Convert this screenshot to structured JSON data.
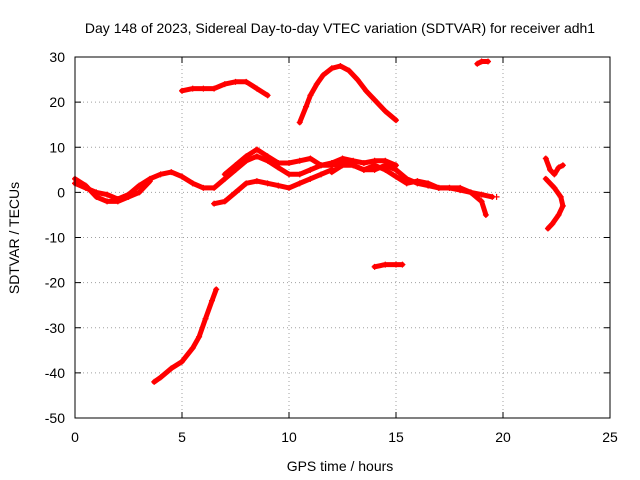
{
  "chart_data": {
    "type": "scatter",
    "title": "Day 148 of 2023, Sidereal Day-to-day VTEC variation (SDTVAR) for receiver adh1",
    "xlabel": "GPS time / hours",
    "ylabel": "SDTVAR / TECUs",
    "xlim": [
      0,
      25
    ],
    "ylim": [
      -50,
      30
    ],
    "xticks": [
      0,
      5,
      10,
      15,
      20,
      25
    ],
    "yticks": [
      -50,
      -40,
      -30,
      -20,
      -10,
      0,
      10,
      20,
      30
    ],
    "xtick_labels": [
      "0",
      "5",
      "10",
      "15",
      "20",
      "25"
    ],
    "ytick_labels": [
      "-50",
      "-40",
      "-30",
      "-20",
      "-10",
      "0",
      "10",
      "20",
      "30"
    ],
    "grid": true,
    "marker_color": "#ff0000",
    "series": [
      {
        "name": "track-1",
        "points": [
          [
            0,
            2
          ],
          [
            0.5,
            1
          ],
          [
            1,
            0
          ],
          [
            1.5,
            -0.5
          ],
          [
            2,
            -1.5
          ],
          [
            2.5,
            -0.5
          ],
          [
            3,
            1.5
          ],
          [
            3.5,
            3
          ],
          [
            4,
            4
          ],
          [
            4.5,
            4.5
          ],
          [
            5,
            3.5
          ],
          [
            5.5,
            2
          ],
          [
            6,
            1
          ],
          [
            6.5,
            1
          ],
          [
            7,
            3
          ],
          [
            7.5,
            5
          ],
          [
            8,
            7
          ],
          [
            8.5,
            8
          ],
          [
            9,
            7
          ],
          [
            9.5,
            5.5
          ],
          [
            10,
            4
          ],
          [
            10.5,
            4
          ],
          [
            11,
            5
          ],
          [
            11.5,
            6
          ],
          [
            12,
            6
          ],
          [
            12.5,
            6.5
          ],
          [
            13,
            6
          ],
          [
            13.5,
            5
          ],
          [
            14,
            5
          ],
          [
            14.5,
            6
          ],
          [
            15,
            5
          ],
          [
            15.5,
            3
          ],
          [
            16,
            2
          ],
          [
            16.5,
            1.5
          ],
          [
            17,
            1
          ],
          [
            17.5,
            1
          ],
          [
            18,
            0.5
          ],
          [
            18.5,
            0
          ],
          [
            19,
            -0.5
          ],
          [
            19.5,
            -1
          ]
        ]
      },
      {
        "name": "track-2",
        "points": [
          [
            0,
            3
          ],
          [
            0.5,
            1.5
          ],
          [
            1,
            -1
          ],
          [
            1.5,
            -2
          ],
          [
            2,
            -2
          ],
          [
            2.5,
            -1
          ],
          [
            3,
            0
          ],
          [
            3.5,
            2.5
          ]
        ]
      },
      {
        "name": "track-3",
        "points": [
          [
            6.5,
            -2.5
          ],
          [
            7,
            -2
          ],
          [
            7.5,
            0
          ],
          [
            8,
            2
          ],
          [
            8.5,
            2.5
          ],
          [
            9,
            2
          ],
          [
            9.5,
            1.5
          ],
          [
            10,
            1
          ],
          [
            10.5,
            2
          ],
          [
            11,
            3
          ],
          [
            11.5,
            4
          ],
          [
            12,
            5
          ]
        ]
      },
      {
        "name": "track-4",
        "points": [
          [
            7,
            4
          ],
          [
            7.5,
            6
          ],
          [
            8,
            8
          ],
          [
            8.5,
            9.5
          ],
          [
            9,
            8
          ],
          [
            9.5,
            6.5
          ],
          [
            10,
            6.5
          ],
          [
            10.5,
            7
          ],
          [
            11,
            7.5
          ],
          [
            11.5,
            6
          ],
          [
            12,
            6.5
          ],
          [
            12.5,
            7.5
          ],
          [
            13,
            7
          ],
          [
            13.5,
            6.5
          ],
          [
            14,
            7
          ],
          [
            14.5,
            7
          ],
          [
            15,
            6
          ]
        ]
      },
      {
        "name": "track-5",
        "points": [
          [
            12,
            4.5
          ],
          [
            12.5,
            6
          ],
          [
            13,
            6
          ],
          [
            13.5,
            5
          ],
          [
            14,
            6
          ],
          [
            14.5,
            5
          ],
          [
            15,
            3.5
          ],
          [
            15.5,
            2
          ],
          [
            16,
            2.5
          ],
          [
            16.5,
            2
          ],
          [
            17,
            1
          ],
          [
            17.5,
            1
          ],
          [
            18,
            1
          ],
          [
            18.5,
            0
          ],
          [
            19,
            -2
          ],
          [
            19.2,
            -5
          ]
        ]
      },
      {
        "name": "track-6",
        "points": [
          [
            5,
            22.5
          ],
          [
            5.5,
            23
          ],
          [
            6,
            23
          ],
          [
            6.5,
            23
          ],
          [
            7,
            24
          ],
          [
            7.5,
            24.5
          ],
          [
            8,
            24.5
          ],
          [
            8.5,
            23
          ],
          [
            9,
            21.5
          ]
        ]
      },
      {
        "name": "track-7",
        "points": [
          [
            10.5,
            15.5
          ],
          [
            10.8,
            19
          ],
          [
            11,
            21.5
          ],
          [
            11.3,
            24
          ],
          [
            11.6,
            26
          ],
          [
            12,
            27.5
          ],
          [
            12.4,
            28
          ],
          [
            12.8,
            27
          ],
          [
            13.2,
            25
          ],
          [
            13.6,
            22.5
          ],
          [
            14,
            20.5
          ],
          [
            14.5,
            18
          ],
          [
            15,
            16
          ]
        ]
      },
      {
        "name": "track-8",
        "points": [
          [
            18.8,
            28.5
          ],
          [
            19,
            29
          ],
          [
            19.3,
            29
          ]
        ]
      },
      {
        "name": "track-9",
        "points": [
          [
            3.7,
            -42
          ],
          [
            4,
            -41
          ],
          [
            4.5,
            -39
          ],
          [
            5,
            -37.5
          ],
          [
            5.5,
            -34.5
          ],
          [
            5.8,
            -32
          ],
          [
            6.1,
            -28
          ],
          [
            6.4,
            -24
          ],
          [
            6.6,
            -21.5
          ]
        ]
      },
      {
        "name": "track-10",
        "points": [
          [
            14,
            -16.5
          ],
          [
            14.5,
            -16
          ],
          [
            15,
            -16
          ],
          [
            15.3,
            -16
          ]
        ]
      },
      {
        "name": "track-11",
        "points": [
          [
            22,
            7.5
          ],
          [
            22.2,
            5
          ],
          [
            22.4,
            4
          ],
          [
            22.6,
            5.5
          ],
          [
            22.8,
            6
          ]
        ]
      },
      {
        "name": "track-12",
        "points": [
          [
            22,
            3
          ],
          [
            22.4,
            1
          ],
          [
            22.7,
            -1
          ],
          [
            22.8,
            -3
          ],
          [
            22.6,
            -5
          ],
          [
            22.3,
            -7
          ],
          [
            22.1,
            -8
          ]
        ]
      },
      {
        "name": "isolated-point",
        "points": [
          [
            19.7,
            -1
          ]
        ]
      }
    ]
  }
}
